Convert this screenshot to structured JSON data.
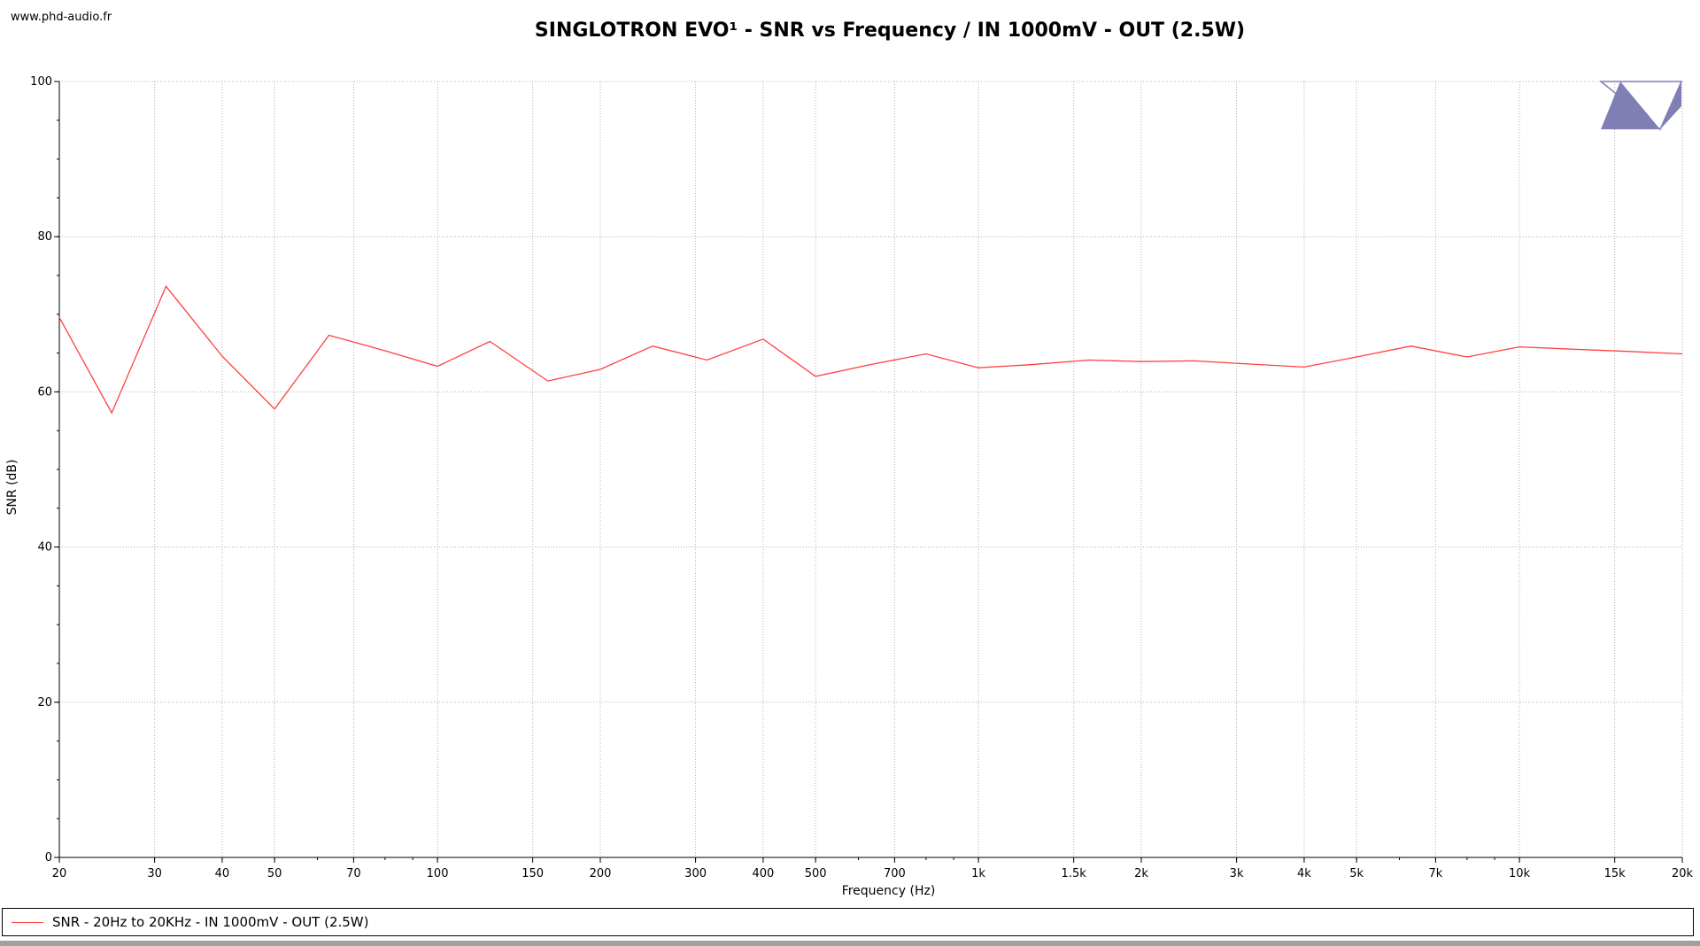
{
  "header": {
    "site": "www.phd-audio.fr"
  },
  "chart_data": {
    "type": "line",
    "title": "SINGLOTRON EVO¹ - SNR vs Frequency / IN 1000mV - OUT (2.5W)",
    "xlabel": "Frequency (Hz)",
    "ylabel": "SNR (dB)",
    "xscale": "log",
    "xlim": [
      20,
      20000
    ],
    "ylim": [
      0,
      100
    ],
    "grid": true,
    "x_tick_labels": [
      {
        "value": 20,
        "label": "20"
      },
      {
        "value": 30,
        "label": "30"
      },
      {
        "value": 40,
        "label": "40"
      },
      {
        "value": 50,
        "label": "50"
      },
      {
        "value": 70,
        "label": "70"
      },
      {
        "value": 100,
        "label": "100"
      },
      {
        "value": 150,
        "label": "150"
      },
      {
        "value": 200,
        "label": "200"
      },
      {
        "value": 300,
        "label": "300"
      },
      {
        "value": 400,
        "label": "400"
      },
      {
        "value": 500,
        "label": "500"
      },
      {
        "value": 700,
        "label": "700"
      },
      {
        "value": 1000,
        "label": "1k"
      },
      {
        "value": 1500,
        "label": "1.5k"
      },
      {
        "value": 2000,
        "label": "2k"
      },
      {
        "value": 3000,
        "label": "3k"
      },
      {
        "value": 4000,
        "label": "4k"
      },
      {
        "value": 5000,
        "label": "5k"
      },
      {
        "value": 7000,
        "label": "7k"
      },
      {
        "value": 10000,
        "label": "10k"
      },
      {
        "value": 15000,
        "label": "15k"
      },
      {
        "value": 20000,
        "label": "20k"
      }
    ],
    "y_ticks": [
      0,
      20,
      40,
      60,
      80,
      100
    ],
    "series": [
      {
        "name": "SNR - 20Hz to 20KHz - IN 1000mV - OUT (2.5W)",
        "color": "#ff4040",
        "x": [
          20,
          25,
          31.5,
          40,
          50,
          63,
          80,
          100,
          125,
          160,
          200,
          250,
          315,
          400,
          500,
          630,
          800,
          1000,
          1250,
          1600,
          2000,
          2500,
          3150,
          4000,
          5000,
          6300,
          8000,
          10000,
          12500,
          16000,
          20000
        ],
        "y": [
          69.6,
          57.3,
          73.6,
          64.6,
          57.8,
          67.3,
          65.3,
          63.3,
          66.5,
          61.4,
          62.9,
          65.9,
          64.1,
          66.8,
          62.0,
          63.5,
          64.9,
          63.1,
          63.5,
          64.1,
          63.9,
          64.0,
          63.6,
          63.2,
          64.5,
          65.9,
          64.5,
          65.8,
          65.5,
          65.2,
          64.9
        ]
      }
    ],
    "legend": "bottom"
  },
  "logo": {
    "name": "phd-audio logo",
    "color": "#7f7fb5"
  }
}
